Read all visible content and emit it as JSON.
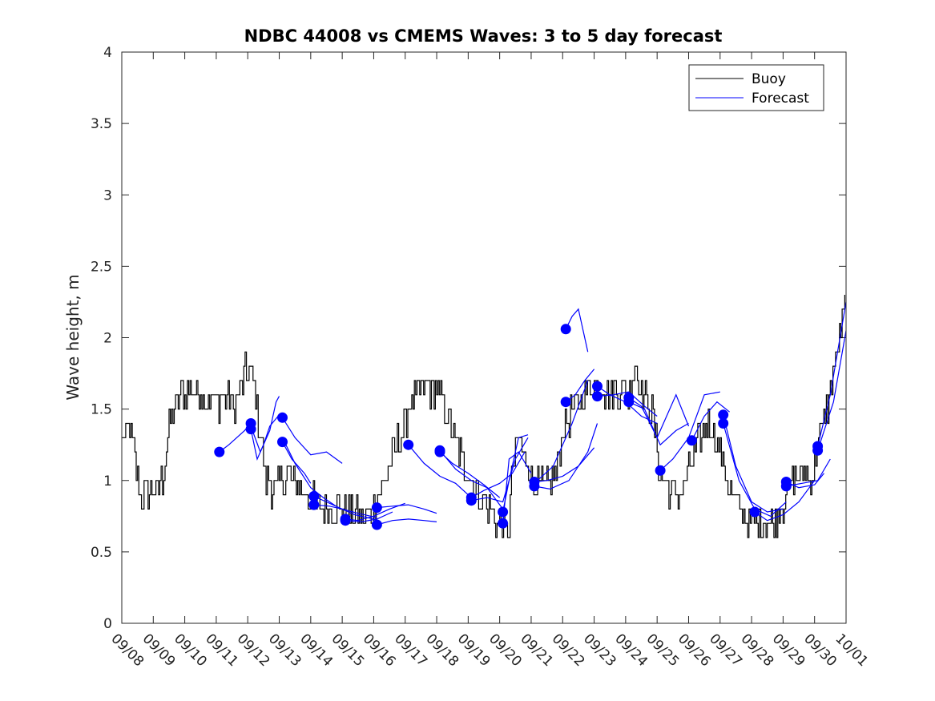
{
  "chart_data": {
    "type": "line",
    "title": "NDBC 44008 vs CMEMS Waves: 3 to 5 day forecast",
    "xlabel": "",
    "ylabel": "Wave height, m",
    "xlim": [
      0,
      23
    ],
    "ylim": [
      0,
      4
    ],
    "yticks": [
      0,
      0.5,
      1,
      1.5,
      2,
      2.5,
      3,
      3.5,
      4
    ],
    "ytick_labels": [
      "0",
      "0.5",
      "1",
      "1.5",
      "2",
      "2.5",
      "3",
      "3.5",
      "4"
    ],
    "xtick_labels": [
      "09/08",
      "09/09",
      "09/10",
      "09/11",
      "09/12",
      "09/13",
      "09/14",
      "09/15",
      "09/16",
      "09/17",
      "09/18",
      "09/19",
      "09/20",
      "09/21",
      "09/22",
      "09/23",
      "09/24",
      "09/25",
      "09/26",
      "09/27",
      "09/28",
      "09/29",
      "09/30",
      "10/01"
    ],
    "legend": {
      "placement": "top-right",
      "entries": [
        "Buoy",
        "Forecast"
      ]
    },
    "colors": {
      "buoy": "#000000",
      "forecast": "#0000ff"
    },
    "buoy_anchors": [
      [
        0,
        1.3
      ],
      [
        0.3,
        1.35
      ],
      [
        0.45,
        1.1
      ],
      [
        0.6,
        0.9
      ],
      [
        1.0,
        0.92
      ],
      [
        1.3,
        1.0
      ],
      [
        1.5,
        1.4
      ],
      [
        1.8,
        1.6
      ],
      [
        2.2,
        1.65
      ],
      [
        2.6,
        1.6
      ],
      [
        3.0,
        1.55
      ],
      [
        3.3,
        1.6
      ],
      [
        3.6,
        1.5
      ],
      [
        3.9,
        1.75
      ],
      [
        4.1,
        1.75
      ],
      [
        4.3,
        1.5
      ],
      [
        4.45,
        1.25
      ],
      [
        4.55,
        1.0
      ],
      [
        4.8,
        0.95
      ],
      [
        5.1,
        1.0
      ],
      [
        5.3,
        1.02
      ],
      [
        5.6,
        0.95
      ],
      [
        6.0,
        0.85
      ],
      [
        6.5,
        0.8
      ],
      [
        7.0,
        0.8
      ],
      [
        7.4,
        0.75
      ],
      [
        7.7,
        0.73
      ],
      [
        8.0,
        0.8
      ],
      [
        8.4,
        1.05
      ],
      [
        8.8,
        1.3
      ],
      [
        9.2,
        1.55
      ],
      [
        9.6,
        1.65
      ],
      [
        10.0,
        1.62
      ],
      [
        10.3,
        1.5
      ],
      [
        10.6,
        1.25
      ],
      [
        11.0,
        1.05
      ],
      [
        11.4,
        0.9
      ],
      [
        11.8,
        0.75
      ],
      [
        12.0,
        0.7
      ],
      [
        12.3,
        0.62
      ],
      [
        12.35,
        1.0
      ],
      [
        12.6,
        1.3
      ],
      [
        12.8,
        1.15
      ],
      [
        13.1,
        0.98
      ],
      [
        13.4,
        0.95
      ],
      [
        13.8,
        1.05
      ],
      [
        14.0,
        1.35
      ],
      [
        14.3,
        1.5
      ],
      [
        14.6,
        1.55
      ],
      [
        15.0,
        1.7
      ],
      [
        15.3,
        1.65
      ],
      [
        15.6,
        1.6
      ],
      [
        15.9,
        1.65
      ],
      [
        16.1,
        1.6
      ],
      [
        16.3,
        1.85
      ],
      [
        16.5,
        1.62
      ],
      [
        16.8,
        1.5
      ],
      [
        17.1,
        1.05
      ],
      [
        17.4,
        0.92
      ],
      [
        17.8,
        0.9
      ],
      [
        18.1,
        1.15
      ],
      [
        18.4,
        1.3
      ],
      [
        18.6,
        1.4
      ],
      [
        18.8,
        1.35
      ],
      [
        19.0,
        1.22
      ],
      [
        19.2,
        1.0
      ],
      [
        19.5,
        0.85
      ],
      [
        19.8,
        0.72
      ],
      [
        20.0,
        0.7
      ],
      [
        20.3,
        0.72
      ],
      [
        20.6,
        0.68
      ],
      [
        21.0,
        0.85
      ],
      [
        21.3,
        1.0
      ],
      [
        21.6,
        1.05
      ],
      [
        21.9,
        1.0
      ],
      [
        22.1,
        1.25
      ],
      [
        22.4,
        1.5
      ],
      [
        22.7,
        1.9
      ],
      [
        23.0,
        2.22
      ]
    ],
    "forecast_series": [
      {
        "x": [
          3.1,
          3.4,
          3.9,
          4.1
        ],
        "y": [
          1.2,
          1.25,
          1.35,
          1.4
        ]
      },
      {
        "x": [
          4.1,
          4.4,
          4.7,
          4.9,
          5.0
        ],
        "y": [
          1.38,
          1.2,
          1.35,
          1.55,
          1.59
        ]
      },
      {
        "x": [
          4.1,
          4.3,
          4.5,
          4.7,
          5.0
        ],
        "y": [
          1.36,
          1.15,
          1.25,
          1.38,
          1.46
        ]
      },
      {
        "x": [
          5.1,
          5.5,
          6.0,
          6.5,
          7.0
        ],
        "y": [
          1.44,
          1.3,
          1.18,
          1.2,
          1.12
        ]
      },
      {
        "x": [
          5.1,
          5.4,
          5.8,
          6.0
        ],
        "y": [
          1.27,
          1.15,
          1.05,
          0.98
        ]
      },
      {
        "x": [
          5.1,
          5.5,
          6.0,
          6.4,
          6.8
        ],
        "y": [
          1.3,
          1.12,
          0.95,
          0.88,
          0.82
        ]
      },
      {
        "x": [
          6.1,
          6.5,
          7.0,
          7.4,
          8.0
        ],
        "y": [
          0.89,
          0.85,
          0.8,
          0.76,
          0.73
        ]
      },
      {
        "x": [
          6.1,
          6.6,
          7.0,
          7.5,
          8.1
        ],
        "y": [
          0.83,
          0.82,
          0.8,
          0.77,
          0.74
        ]
      },
      {
        "x": [
          7.1,
          7.5,
          8.0,
          8.5,
          9.0
        ],
        "y": [
          0.73,
          0.72,
          0.75,
          0.8,
          0.84
        ]
      },
      {
        "x": [
          7.1,
          7.6,
          8.1,
          8.6
        ],
        "y": [
          0.72,
          0.71,
          0.73,
          0.78
        ]
      },
      {
        "x": [
          8.1,
          8.6,
          9.1,
          9.6,
          10.0
        ],
        "y": [
          0.81,
          0.82,
          0.83,
          0.8,
          0.77
        ]
      },
      {
        "x": [
          8.1,
          8.6,
          9.1,
          9.6,
          10.0
        ],
        "y": [
          0.69,
          0.72,
          0.73,
          0.72,
          0.71
        ]
      },
      {
        "x": [
          9.1,
          9.6,
          10.1,
          10.6,
          11.0
        ],
        "y": [
          1.25,
          1.12,
          1.03,
          0.98,
          0.9
        ]
      },
      {
        "x": [
          10.1,
          10.5,
          11.0,
          11.5,
          12.0
        ],
        "y": [
          1.2,
          1.12,
          1.05,
          0.97,
          0.88
        ]
      },
      {
        "x": [
          10.1,
          10.6,
          11.1,
          11.6,
          12.1
        ],
        "y": [
          1.21,
          1.08,
          1.0,
          0.95,
          0.8
        ]
      },
      {
        "x": [
          11.1,
          11.5,
          12.0,
          12.4,
          12.8
        ],
        "y": [
          0.88,
          0.93,
          0.98,
          1.05,
          1.2
        ]
      },
      {
        "x": [
          11.1,
          11.6,
          12.1,
          12.5,
          12.9
        ],
        "y": [
          0.86,
          0.88,
          0.85,
          1.15,
          1.3
        ]
      },
      {
        "x": [
          12.1,
          12.3,
          12.6,
          12.9
        ],
        "y": [
          0.78,
          1.0,
          1.3,
          1.32
        ]
      },
      {
        "x": [
          12.1,
          12.3,
          12.6,
          13.0
        ],
        "y": [
          0.7,
          1.15,
          1.2,
          1.05
        ]
      },
      {
        "x": [
          13.1,
          13.5,
          14.0,
          14.5,
          15.0
        ],
        "y": [
          0.99,
          1.0,
          1.03,
          1.1,
          1.23
        ]
      },
      {
        "x": [
          13.1,
          13.6,
          14.2,
          14.8,
          15.1
        ],
        "y": [
          0.96,
          0.94,
          1.0,
          1.2,
          1.4
        ]
      },
      {
        "x": [
          13.1,
          13.7,
          14.3,
          14.8
        ],
        "y": [
          0.98,
          1.1,
          1.4,
          1.7
        ]
      },
      {
        "x": [
          14.1,
          14.3,
          14.5,
          14.8
        ],
        "y": [
          2.06,
          2.15,
          2.2,
          1.9
        ]
      },
      {
        "x": [
          14.1,
          14.4,
          14.7,
          15.0
        ],
        "y": [
          1.55,
          1.6,
          1.7,
          1.78
        ]
      },
      {
        "x": [
          15.1,
          15.5,
          16.0,
          16.5,
          17.0
        ],
        "y": [
          1.66,
          1.6,
          1.55,
          1.45,
          1.4
        ]
      },
      {
        "x": [
          15.1,
          15.6,
          16.1,
          16.6,
          17.0
        ],
        "y": [
          1.59,
          1.6,
          1.62,
          1.52,
          1.45
        ]
      },
      {
        "x": [
          16.1,
          16.5,
          17.0,
          17.3,
          17.6,
          18.0
        ],
        "y": [
          1.58,
          1.52,
          1.3,
          1.45,
          1.6,
          1.38
        ]
      },
      {
        "x": [
          16.1,
          16.6,
          17.1,
          17.6,
          18.0
        ],
        "y": [
          1.55,
          1.5,
          1.25,
          1.35,
          1.4
        ]
      },
      {
        "x": [
          17.1,
          17.5,
          18.0,
          18.5,
          19.0
        ],
        "y": [
          1.07,
          1.15,
          1.3,
          1.6,
          1.62
        ]
      },
      {
        "x": [
          18.1,
          18.5,
          18.9,
          19.3
        ],
        "y": [
          1.28,
          1.45,
          1.55,
          1.48
        ]
      },
      {
        "x": [
          19.1,
          19.5,
          20.0,
          20.5,
          21.0
        ],
        "y": [
          1.46,
          1.1,
          0.85,
          0.78,
          0.8
        ]
      },
      {
        "x": [
          19.1,
          19.6,
          20.1,
          20.6,
          21.1
        ],
        "y": [
          1.4,
          1.0,
          0.8,
          0.75,
          0.85
        ]
      },
      {
        "x": [
          20.1,
          20.5,
          21.0,
          21.5,
          22.0
        ],
        "y": [
          0.78,
          0.72,
          0.76,
          0.85,
          1.0
        ]
      },
      {
        "x": [
          21.1,
          21.5,
          22.0,
          22.3
        ],
        "y": [
          0.99,
          0.95,
          0.97,
          1.05
        ]
      },
      {
        "x": [
          21.1,
          21.6,
          22.1,
          22.5
        ],
        "y": [
          0.96,
          0.98,
          1.0,
          1.15
        ]
      },
      {
        "x": [
          22.1,
          22.5,
          23.0
        ],
        "y": [
          1.24,
          1.6,
          2.25
        ]
      },
      {
        "x": [
          22.1,
          22.6,
          23.0
        ],
        "y": [
          1.21,
          1.55,
          2.05
        ]
      }
    ],
    "forecast_markers": [
      [
        3.1,
        1.2
      ],
      [
        4.1,
        1.4
      ],
      [
        4.1,
        1.36
      ],
      [
        5.1,
        1.44
      ],
      [
        5.1,
        1.27
      ],
      [
        6.1,
        0.89
      ],
      [
        6.1,
        0.83
      ],
      [
        7.1,
        0.73
      ],
      [
        7.1,
        0.72
      ],
      [
        8.1,
        0.81
      ],
      [
        8.1,
        0.69
      ],
      [
        9.1,
        1.25
      ],
      [
        10.1,
        1.21
      ],
      [
        10.1,
        1.2
      ],
      [
        11.1,
        0.88
      ],
      [
        11.1,
        0.86
      ],
      [
        12.1,
        0.78
      ],
      [
        12.1,
        0.7
      ],
      [
        13.1,
        0.99
      ],
      [
        13.1,
        0.96
      ],
      [
        14.1,
        2.06
      ],
      [
        14.1,
        1.55
      ],
      [
        15.1,
        1.66
      ],
      [
        15.1,
        1.59
      ],
      [
        16.1,
        1.58
      ],
      [
        16.1,
        1.55
      ],
      [
        17.1,
        1.07
      ],
      [
        18.1,
        1.28
      ],
      [
        19.1,
        1.46
      ],
      [
        19.1,
        1.4
      ],
      [
        20.1,
        0.78
      ],
      [
        21.1,
        0.99
      ],
      [
        21.1,
        0.96
      ],
      [
        22.1,
        1.24
      ],
      [
        22.1,
        1.21
      ]
    ]
  }
}
